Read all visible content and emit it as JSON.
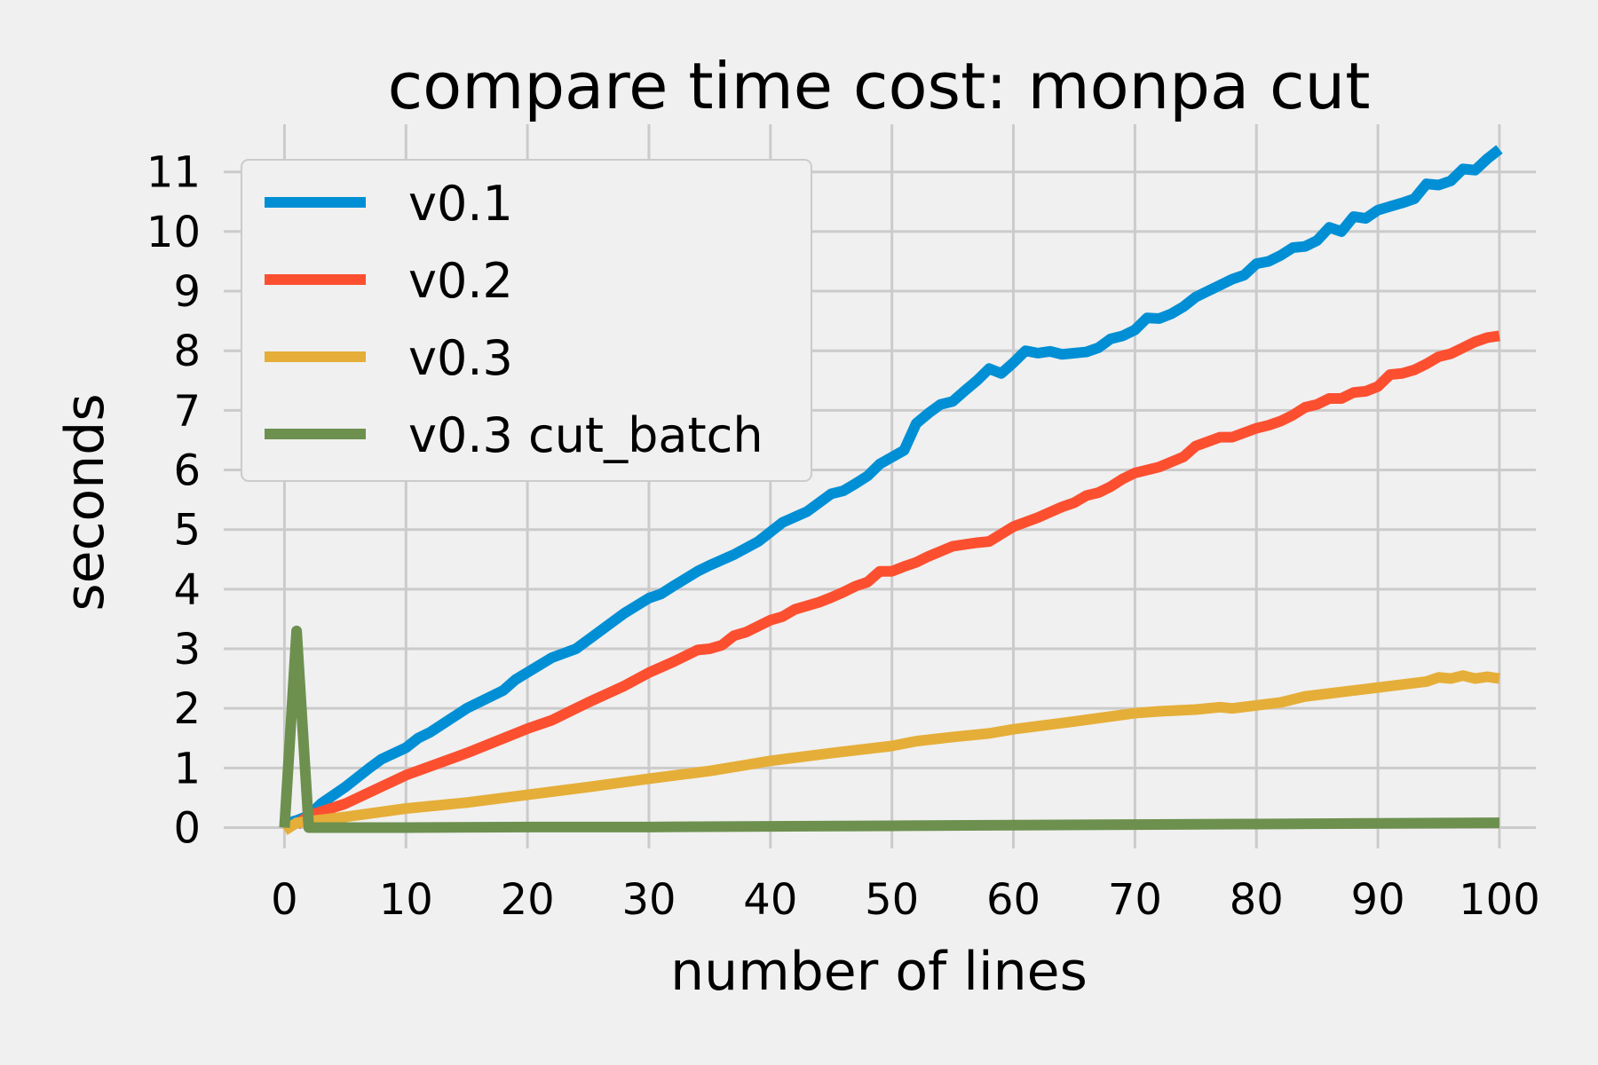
{
  "chart_data": {
    "type": "line",
    "title": "compare time cost: monpa cut",
    "xlabel": "number of lines",
    "ylabel": "seconds",
    "xlim": [
      -5,
      103
    ],
    "ylim": [
      -0.35,
      11.8
    ],
    "xticks": [
      0,
      10,
      20,
      30,
      40,
      50,
      60,
      70,
      80,
      90,
      100
    ],
    "yticks": [
      0,
      1,
      2,
      3,
      4,
      5,
      6,
      7,
      8,
      9,
      10,
      11
    ],
    "grid": true,
    "legend_position": "upper-left",
    "colors": {
      "background": "#f0f0f0",
      "grid": "#cbcbcb"
    },
    "series": [
      {
        "name": "v0.1",
        "color": "#008fd5",
        "x": [
          0,
          1,
          2,
          3,
          5,
          7,
          8,
          10,
          11,
          12,
          15,
          18,
          19,
          22,
          24,
          28,
          30,
          31,
          32,
          34,
          35,
          37,
          39,
          41,
          43,
          45,
          46,
          47,
          48,
          49,
          51,
          52,
          53,
          54,
          55,
          56,
          57,
          58,
          59,
          60,
          61,
          62,
          63,
          64,
          66,
          67,
          68,
          69,
          70,
          71,
          72,
          73,
          74,
          75,
          76,
          77,
          78,
          79,
          80,
          81,
          82,
          83,
          84,
          85,
          86,
          87,
          88,
          89,
          90,
          91,
          92,
          93,
          94,
          95,
          96,
          97,
          98,
          99,
          100
        ],
        "values": [
          0.06,
          0.12,
          0.2,
          0.4,
          0.68,
          1.0,
          1.15,
          1.34,
          1.5,
          1.6,
          2.0,
          2.3,
          2.48,
          2.85,
          3.0,
          3.6,
          3.85,
          3.92,
          4.05,
          4.3,
          4.4,
          4.58,
          4.8,
          5.12,
          5.3,
          5.6,
          5.65,
          5.77,
          5.9,
          6.1,
          6.33,
          6.78,
          6.95,
          7.1,
          7.15,
          7.33,
          7.5,
          7.7,
          7.62,
          7.8,
          8.0,
          7.96,
          7.99,
          7.94,
          7.98,
          8.05,
          8.2,
          8.25,
          8.35,
          8.55,
          8.54,
          8.62,
          8.74,
          8.9,
          9.0,
          9.1,
          9.2,
          9.27,
          9.46,
          9.5,
          9.6,
          9.73,
          9.75,
          9.85,
          10.07,
          10.0,
          10.25,
          10.22,
          10.36,
          10.42,
          10.48,
          10.55,
          10.8,
          10.78,
          10.85,
          11.05,
          11.03,
          11.22,
          11.38
        ]
      },
      {
        "name": "v0.2",
        "color": "#fc4f30",
        "x": [
          1,
          2,
          5,
          10,
          15,
          20,
          22,
          24,
          25,
          28,
          30,
          32,
          34,
          35,
          36,
          37,
          38,
          40,
          41,
          42,
          44,
          45,
          46,
          47,
          48,
          49,
          50,
          51,
          52,
          53,
          55,
          57,
          58,
          60,
          62,
          64,
          65,
          66,
          67,
          68,
          69,
          70,
          71,
          72,
          74,
          75,
          77,
          78,
          80,
          81,
          82,
          83,
          84,
          85,
          86,
          87,
          88,
          89,
          90,
          91,
          92,
          93,
          94,
          95,
          96,
          97,
          98,
          99,
          100
        ],
        "values": [
          0.05,
          0.2,
          0.4,
          0.88,
          1.25,
          1.66,
          1.8,
          2.0,
          2.1,
          2.38,
          2.6,
          2.78,
          2.98,
          3.0,
          3.06,
          3.22,
          3.28,
          3.48,
          3.54,
          3.66,
          3.78,
          3.86,
          3.95,
          4.05,
          4.12,
          4.3,
          4.3,
          4.38,
          4.45,
          4.55,
          4.72,
          4.78,
          4.8,
          5.05,
          5.2,
          5.38,
          5.45,
          5.57,
          5.62,
          5.72,
          5.85,
          5.95,
          6.0,
          6.05,
          6.22,
          6.4,
          6.55,
          6.55,
          6.7,
          6.75,
          6.82,
          6.92,
          7.05,
          7.1,
          7.2,
          7.2,
          7.3,
          7.32,
          7.4,
          7.6,
          7.62,
          7.68,
          7.78,
          7.9,
          7.95,
          8.05,
          8.15,
          8.22,
          8.25
        ]
      },
      {
        "name": "v0.3",
        "color": "#e5ae38",
        "x": [
          0,
          1,
          5,
          10,
          15,
          20,
          25,
          30,
          35,
          38,
          40,
          45,
          50,
          52,
          55,
          58,
          60,
          65,
          70,
          72,
          75,
          77,
          78,
          80,
          82,
          84,
          86,
          88,
          90,
          92,
          94,
          95,
          96,
          97,
          98,
          99,
          100
        ],
        "values": [
          -0.05,
          0.08,
          0.18,
          0.32,
          0.42,
          0.55,
          0.68,
          0.82,
          0.95,
          1.05,
          1.12,
          1.25,
          1.37,
          1.45,
          1.52,
          1.58,
          1.65,
          1.78,
          1.92,
          1.95,
          1.98,
          2.02,
          2.0,
          2.05,
          2.1,
          2.2,
          2.25,
          2.3,
          2.35,
          2.4,
          2.45,
          2.52,
          2.5,
          2.55,
          2.5,
          2.53,
          2.5
        ]
      },
      {
        "name": "v0.3 cut_batch",
        "color": "#6d904f",
        "x": [
          0,
          1,
          2,
          10,
          20,
          30,
          40,
          50,
          60,
          70,
          80,
          90,
          100
        ],
        "values": [
          0.0,
          3.3,
          0.0,
          0.0,
          0.01,
          0.01,
          0.02,
          0.03,
          0.04,
          0.05,
          0.06,
          0.07,
          0.08
        ]
      }
    ]
  }
}
